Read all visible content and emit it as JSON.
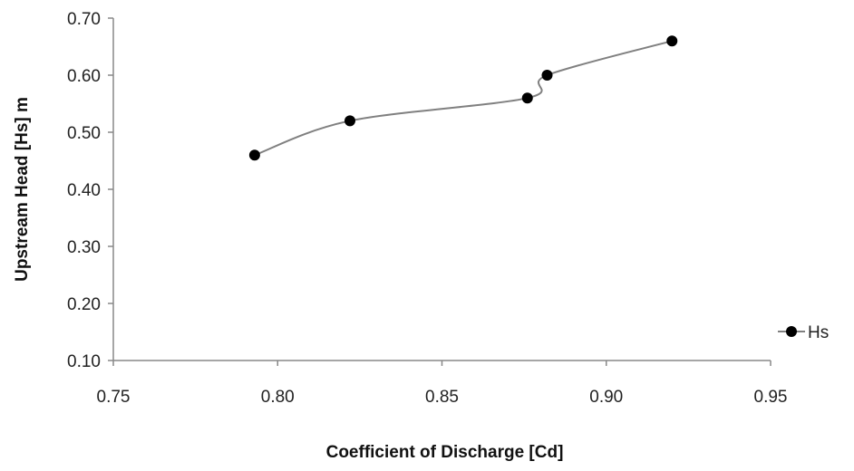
{
  "chart_data": {
    "type": "scatter",
    "xlabel": "Coefficient of Discharge [Cd]",
    "ylabel": "Upstream Head [Hs] m",
    "xlim": [
      0.75,
      0.95
    ],
    "ylim": [
      0.1,
      0.7
    ],
    "x_ticks": [
      "0.75",
      "0.80",
      "0.85",
      "0.90",
      "0.95"
    ],
    "y_ticks": [
      "0.10",
      "0.20",
      "0.30",
      "0.40",
      "0.50",
      "0.60",
      "0.70"
    ],
    "grid": false,
    "legend_position": "right",
    "series": [
      {
        "name": "Hs",
        "line": "smooth",
        "color": "#808080",
        "marker_color": "#000000",
        "points": [
          {
            "x": 0.793,
            "y": 0.46
          },
          {
            "x": 0.822,
            "y": 0.52
          },
          {
            "x": 0.876,
            "y": 0.56
          },
          {
            "x": 0.882,
            "y": 0.6
          },
          {
            "x": 0.92,
            "y": 0.66
          }
        ]
      }
    ]
  }
}
